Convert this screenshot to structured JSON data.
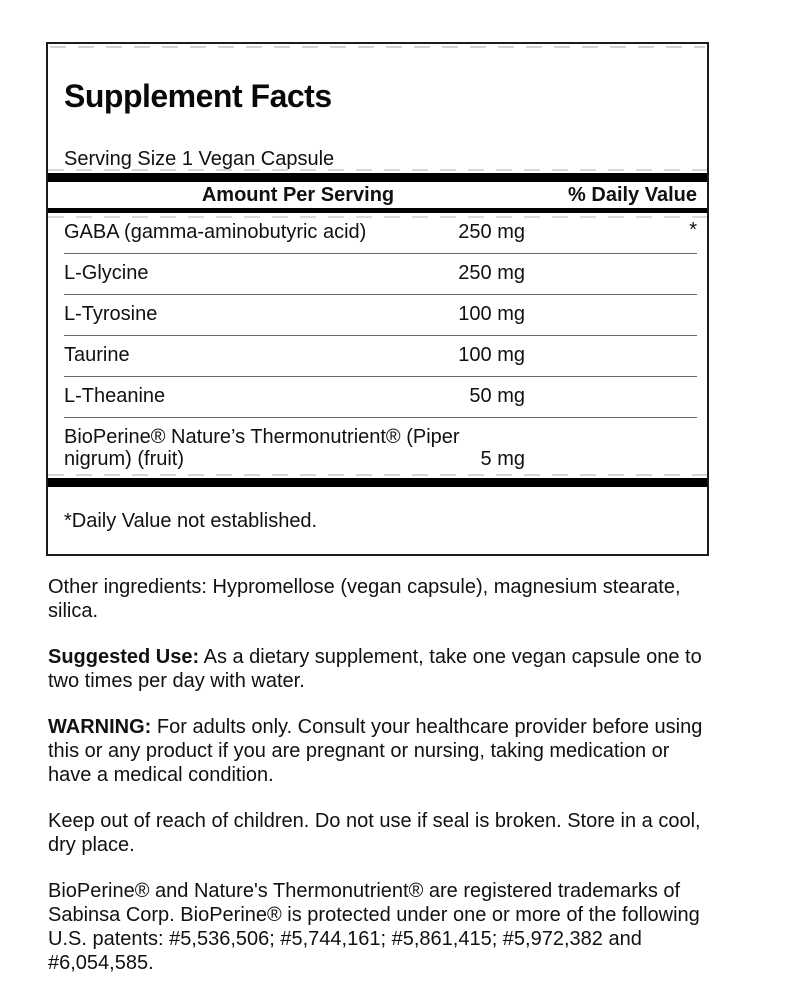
{
  "label_box": {
    "title": "Supplement Facts",
    "serving_size": "Serving Size 1 Vegan Capsule",
    "columns": {
      "amount": "Amount Per Serving",
      "daily_value": "% Daily Value"
    },
    "rows": [
      {
        "name": "GABA (gamma-aminobutyric acid)",
        "amount": "250 mg",
        "dv": "*"
      },
      {
        "name": "L-Glycine",
        "amount": "250 mg",
        "dv": ""
      },
      {
        "name": "L-Tyrosine",
        "amount": "100 mg",
        "dv": ""
      },
      {
        "name": "Taurine",
        "amount": "100 mg",
        "dv": ""
      },
      {
        "name": "L-Theanine",
        "amount": "50 mg",
        "dv": ""
      },
      {
        "name": "BioPerine® Nature’s Thermonutrient® (Piper nigrum) (fruit)",
        "amount": "5 mg",
        "dv": ""
      }
    ],
    "footnote": "*Daily Value not established."
  },
  "info": {
    "other_ingredients": "Other ingredients: Hypromellose (vegan capsule), magnesium stearate, silica.",
    "suggested_use_label": "Suggested Use:",
    "suggested_use_text": " As a dietary supplement, take one vegan capsule one to two times per day with water.",
    "warning_label": "WARNING:",
    "warning_text": " For adults only. Consult your healthcare provider before using this or any product if you are pregnant or nursing, taking medication or have a medical condition.",
    "storage": "Keep out of reach of children. Do not use if seal is broken. Store in a cool, dry place.",
    "trademark": "BioPerine® and Nature's Thermonutrient® are registered trademarks of Sabinsa Corp. BioPerine® is protected under one or more of the following U.S. patents: #5,536,506; #5,744,161; #5,861,415; #5,972,382 and #6,054,585."
  },
  "colors": {
    "text": "#111111",
    "bar": "#000000",
    "divider": "#6a6a6a",
    "border": "#1c1c1c"
  }
}
